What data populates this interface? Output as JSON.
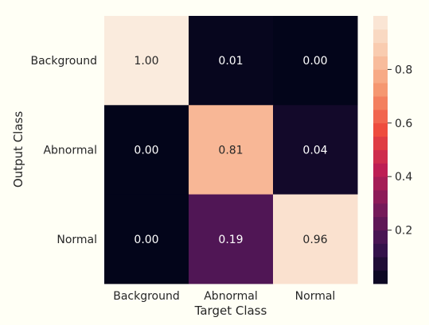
{
  "chart_data": {
    "type": "heatmap",
    "title": "",
    "xlabel": "Target Class",
    "ylabel": "Output Class",
    "x_categories": [
      "Background",
      "Abnormal",
      "Normal"
    ],
    "y_categories": [
      "Background",
      "Abnormal",
      "Normal"
    ],
    "values": [
      [
        1.0,
        0.01,
        0.0
      ],
      [
        0.0,
        0.81,
        0.04
      ],
      [
        0.0,
        0.19,
        0.96
      ]
    ],
    "cell_labels": [
      [
        "1.00",
        "0.01",
        "0.00"
      ],
      [
        "0.00",
        "0.81",
        "0.04"
      ],
      [
        "0.00",
        "0.19",
        "0.96"
      ]
    ],
    "colorbar": {
      "range": [
        0,
        1
      ],
      "ticks": [
        0.2,
        0.4,
        0.6,
        0.8
      ],
      "tick_labels": [
        "0.2",
        "0.4",
        "0.6",
        "0.8"
      ],
      "bins": 20
    },
    "grid": false,
    "colormap_stops": [
      "#03051a",
      "#3b1452",
      "#7a1a5b",
      "#bf1e54",
      "#ee4a3d",
      "#f5936c",
      "#f9c8aa",
      "#faebdd"
    ]
  }
}
